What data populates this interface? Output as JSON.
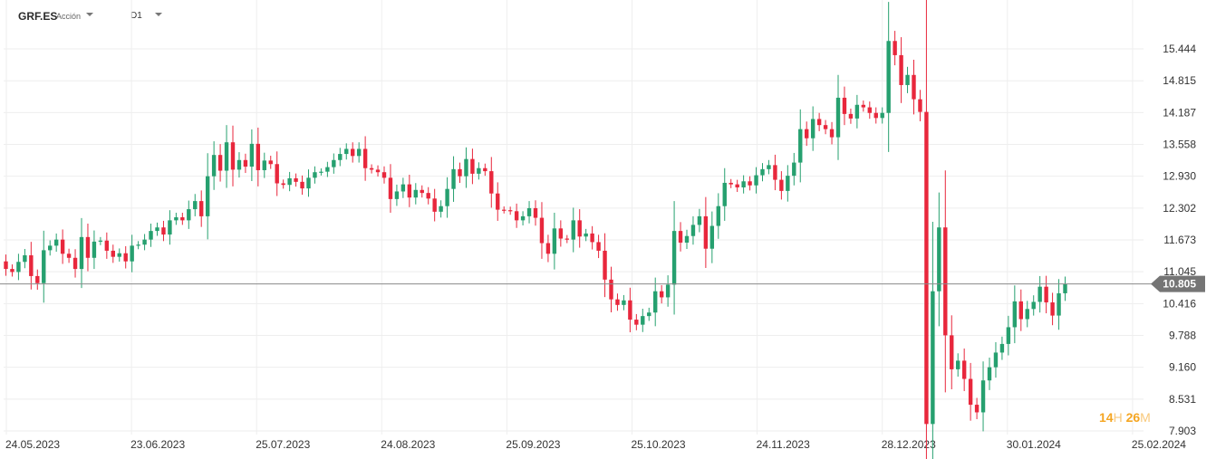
{
  "toolbar": {
    "symbol": "GRF.ES",
    "instrument_type": "Acción",
    "timeframe": "D1"
  },
  "countdown": {
    "hours": "14",
    "hours_unit": "H",
    "minutes": "26",
    "minutes_unit": "M"
  },
  "colors": {
    "up": "#26a06f",
    "down": "#e8273c",
    "grid": "#eeeeee",
    "price_line": "#8a8a8a",
    "price_label_bg": "#757575",
    "countdown": "#f5a623"
  },
  "chart_data": {
    "type": "candlestick",
    "symbol": "GRF.ES",
    "timeframe": "D1",
    "ylim": [
      7.9,
      16.4
    ],
    "y_ticks": [
      "15.444",
      "14.815",
      "14.187",
      "13.558",
      "12.930",
      "12.302",
      "11.673",
      "11.045",
      "10.416",
      "9.788",
      "9.160",
      "8.531",
      "7.903"
    ],
    "x_ticks": [
      "24.05.2023",
      "23.06.2023",
      "25.07.2023",
      "24.08.2023",
      "25.09.2023",
      "25.10.2023",
      "24.11.2023",
      "28.12.2023",
      "30.01.2024",
      "25.02.2024"
    ],
    "current_price": 10.805,
    "current_price_label": "10.805",
    "close": [
      11.1,
      11.04,
      11.24,
      11.37,
      10.96,
      10.82,
      11.47,
      11.56,
      11.68,
      11.4,
      11.32,
      11.1,
      11.73,
      11.32,
      11.64,
      11.66,
      11.46,
      11.34,
      11.41,
      11.25,
      11.56,
      11.58,
      11.68,
      11.85,
      11.92,
      11.78,
      12.06,
      12.12,
      12.06,
      12.28,
      12.44,
      12.14,
      12.93,
      13.35,
      13.04,
      13.6,
      13.06,
      13.25,
      13.12,
      13.57,
      13.05,
      13.24,
      13.17,
      12.79,
      12.76,
      12.89,
      12.82,
      12.69,
      12.9,
      13.01,
      13.02,
      13.11,
      13.25,
      13.37,
      13.47,
      13.33,
      13.47,
      13.09,
      13.06,
      13.01,
      12.9,
      12.48,
      12.63,
      12.77,
      12.51,
      12.66,
      12.6,
      12.49,
      12.23,
      12.34,
      12.68,
      13.07,
      12.93,
      13.27,
      12.98,
      13.09,
      13.03,
      12.59,
      12.27,
      12.26,
      12.24,
      12.06,
      12.14,
      12.3,
      12.11,
      11.61,
      11.4,
      11.9,
      11.7,
      11.68,
      12.06,
      11.74,
      11.8,
      11.63,
      11.46,
      10.89,
      10.5,
      10.39,
      10.48,
      10.1,
      10.0,
      10.17,
      10.24,
      10.66,
      10.54,
      10.79,
      11.85,
      11.62,
      11.75,
      11.97,
      12.14,
      11.5,
      11.95,
      12.34,
      12.8,
      12.77,
      12.71,
      12.83,
      12.75,
      12.95,
      13.07,
      13.15,
      12.86,
      12.64,
      12.94,
      13.2,
      13.86,
      13.68,
      14.06,
      13.94,
      13.86,
      13.7,
      14.48,
      14.16,
      14.07,
      14.34,
      14.29,
      14.18,
      14.08,
      14.18,
      15.6,
      15.32,
      14.73,
      14.93,
      14.45,
      14.2,
      8.04,
      10.66,
      11.92,
      9.79,
      9.12,
      9.29,
      8.93,
      8.42,
      8.27,
      8.9,
      9.16,
      9.45,
      9.62,
      9.95,
      10.46,
      10.11,
      10.31,
      10.45,
      10.75,
      10.44,
      10.18,
      10.62,
      10.8
    ]
  }
}
